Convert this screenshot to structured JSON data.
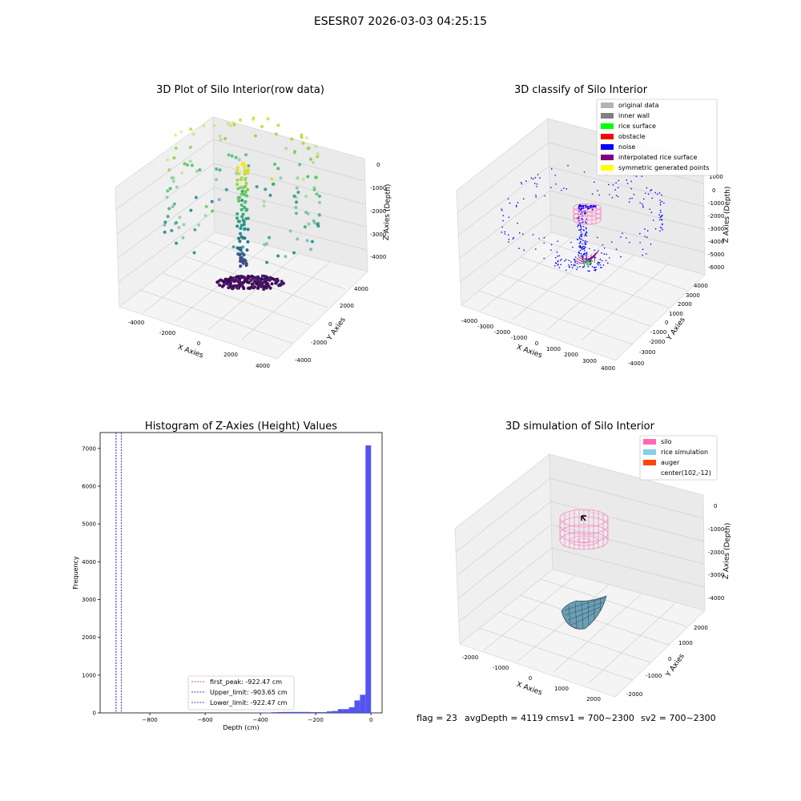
{
  "suptitle": "ESESR07 2026-03-03 04:25:15",
  "footer": {
    "flag": "flag = 23",
    "avg": "avgDepth = 4119 cmsv1 = 700~2300",
    "sv2": "sv2 = 700~2300"
  },
  "colors": {
    "original": "#b3b3b3",
    "inner_wall": "#808080",
    "rice_surface": "#00ff00",
    "obstacle": "#ff0000",
    "noise": "#0000ff",
    "interpolated": "#800080",
    "symmetric": "#ffff00",
    "silo": "#ff69b4",
    "rice_sim": "#87ceeb",
    "auger": "#ff4500",
    "hist": "#4b4bf2",
    "peak_line": "#b22222",
    "limit_line": "#0000cd"
  },
  "chart_data": [
    {
      "type": "scatter",
      "title": "3D Plot of Silo Interior(row data)",
      "xlabel": "X Axies",
      "ylabel": "Y Axies",
      "zlabel": "Z Axies (Depth)",
      "x_ticks": [
        "-4000",
        "-2000",
        "0",
        "2000",
        "4000"
      ],
      "y_ticks": [
        "-4000",
        "-2000",
        "0",
        "2000",
        "4000"
      ],
      "z_ticks": [
        "0",
        "-1000",
        "-2000",
        "-3000",
        "-4000"
      ],
      "xlim": [
        -4500,
        4500
      ],
      "ylim": [
        -4500,
        4500
      ],
      "zlim": [
        -4500,
        0
      ],
      "colormap": "viridis"
    },
    {
      "type": "scatter",
      "title": "3D classify of Silo Interior",
      "xlabel": "X Axies",
      "ylabel": "Y Axies",
      "zlabel": "Z Axies (Depth)",
      "x_ticks": [
        "-4000",
        "-3000",
        "-2000",
        "-1000",
        "0",
        "1000",
        "2000",
        "3000",
        "4000"
      ],
      "y_ticks": [
        "-4000",
        "-3000",
        "-2000",
        "-1000",
        "0",
        "1000",
        "2000",
        "3000",
        "4000"
      ],
      "z_ticks": [
        "1000",
        "0",
        "-1000",
        "-2000",
        "-3000",
        "-4000",
        "-5000",
        "-6000"
      ],
      "legend": [
        "original data",
        "inner wall",
        "rice surface",
        "obstacle",
        "noise",
        "interpolated rice surface",
        "symmetric generated points"
      ],
      "legend_loc": "upper right"
    },
    {
      "type": "bar",
      "title": "Histogram of Z-Axies (Height) Values",
      "xlabel": "Depth (cm)",
      "ylabel": "Frequency",
      "xlim": [
        -980,
        40
      ],
      "ylim": [
        0,
        7420
      ],
      "x_ticks": [
        -800,
        -600,
        -400,
        -200,
        0
      ],
      "y_ticks": [
        0,
        1000,
        2000,
        3000,
        4000,
        5000,
        6000,
        7000
      ],
      "bin_width": 20,
      "bins": [
        {
          "x": -440,
          "y": 5
        },
        {
          "x": -420,
          "y": 8
        },
        {
          "x": -400,
          "y": 6
        },
        {
          "x": -380,
          "y": 10
        },
        {
          "x": -360,
          "y": 18
        },
        {
          "x": -340,
          "y": 22
        },
        {
          "x": -320,
          "y": 25
        },
        {
          "x": -300,
          "y": 25
        },
        {
          "x": -280,
          "y": 25
        },
        {
          "x": -260,
          "y": 25
        },
        {
          "x": -240,
          "y": 25
        },
        {
          "x": -220,
          "y": 20
        },
        {
          "x": -200,
          "y": 20
        },
        {
          "x": -180,
          "y": 20
        },
        {
          "x": -160,
          "y": 40
        },
        {
          "x": -140,
          "y": 50
        },
        {
          "x": -120,
          "y": 100
        },
        {
          "x": -100,
          "y": 100
        },
        {
          "x": -80,
          "y": 150
        },
        {
          "x": -60,
          "y": 330
        },
        {
          "x": -40,
          "y": 480
        },
        {
          "x": -20,
          "y": 7080
        }
      ],
      "vlines": [
        {
          "label": "first_peak: -922.47 cm",
          "x": -922.47,
          "color": "#b22222"
        },
        {
          "label": "Upper_limit: -903.65 cm",
          "x": -903.65,
          "color": "#0000cd"
        },
        {
          "label": "Lower_limit: -922.47 cm",
          "x": -922.47,
          "color": "#0000cd"
        }
      ]
    },
    {
      "type": "surface",
      "title": "3D simulation of Silo Interior",
      "xlabel": "X Axies",
      "ylabel": "Y Axies",
      "zlabel": "Z Axies (Depth)",
      "x_ticks": [
        "-2000",
        "-1000",
        "0",
        "1000",
        "2000"
      ],
      "y_ticks": [
        "-2000",
        "-1000",
        "0",
        "1000",
        "2000"
      ],
      "z_ticks": [
        "0",
        "-1000",
        "-2000",
        "-3000",
        "-4000"
      ],
      "legend": [
        "silo",
        "rice simulation",
        "auger",
        "center(102,-12)"
      ],
      "legend_loc": "upper right"
    }
  ]
}
